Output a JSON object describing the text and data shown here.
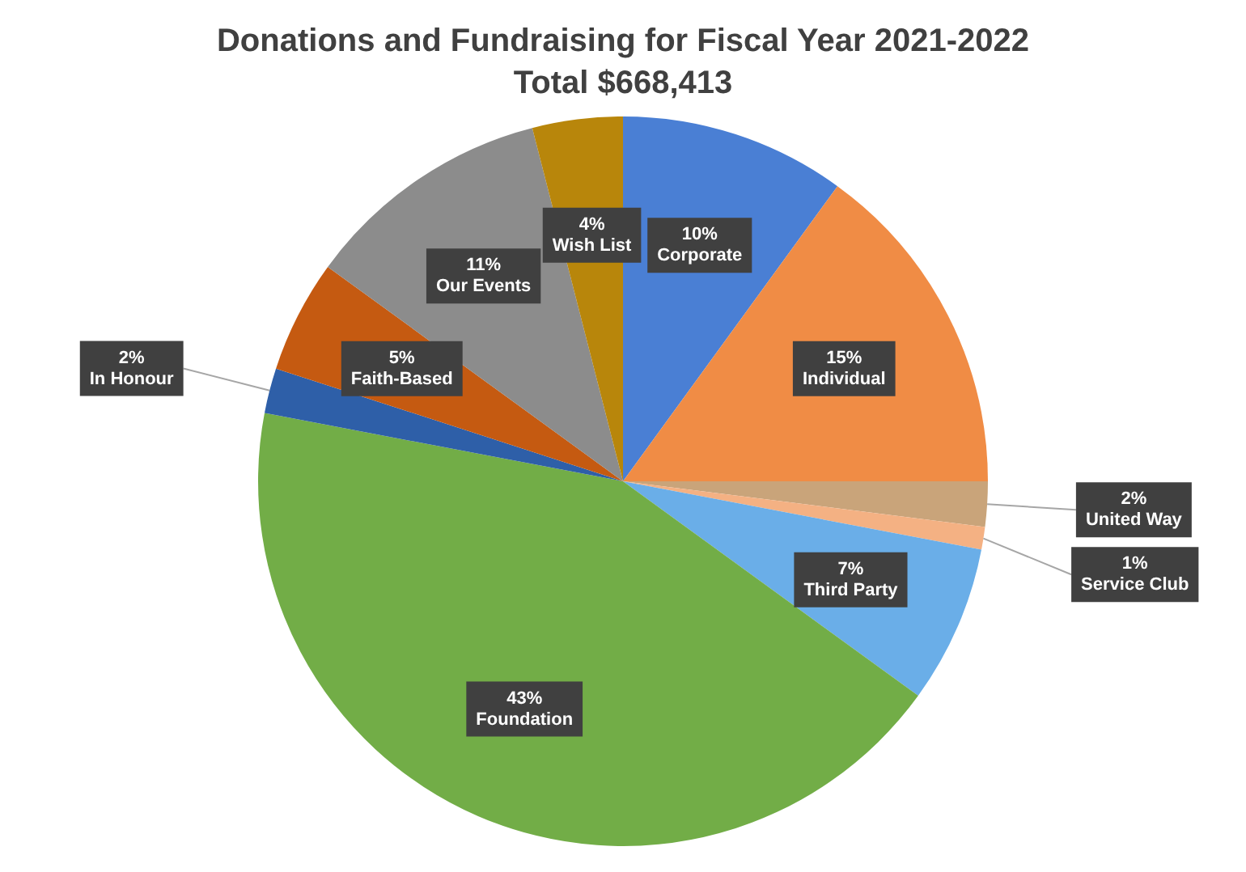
{
  "chart_data": {
    "type": "pie",
    "title": "Donations and Fundraising for Fiscal Year 2021-2022",
    "subtitle": "Total $668,413",
    "categories": [
      "Corporate",
      "Individual",
      "United Way",
      "Service Club",
      "Third Party",
      "Foundation",
      "In Honour",
      "Faith-Based",
      "Our Events",
      "Wish List"
    ],
    "values": [
      10,
      15,
      2,
      1,
      7,
      43,
      2,
      5,
      11,
      4
    ],
    "value_labels": [
      "10%",
      "15%",
      "2%",
      "1%",
      "7%",
      "43%",
      "2%",
      "5%",
      "11%",
      "4%"
    ],
    "colors": [
      "#4a7fd4",
      "#f08c45",
      "#c9a47a",
      "#f4b183",
      "#6aaee8",
      "#72ad47",
      "#2e5fa8",
      "#c55a11",
      "#8c8c8c",
      "#b8860b"
    ],
    "legend": false
  }
}
